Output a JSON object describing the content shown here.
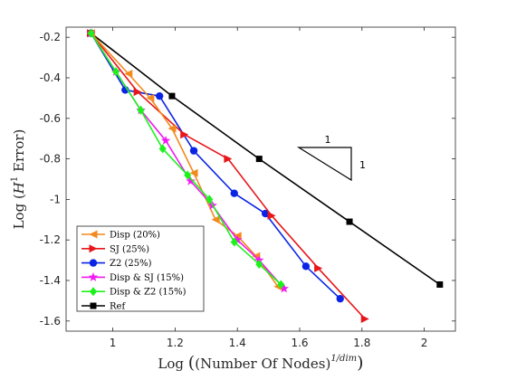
{
  "chart_data": {
    "type": "line",
    "xlabel": "Log ((Number Of Nodes)^{1/dim})",
    "ylabel": "Log (H^1 Error)",
    "xlim": [
      0.85,
      2.1
    ],
    "ylim": [
      -1.65,
      -0.15
    ],
    "xticks": [
      1,
      1.2,
      1.4,
      1.6,
      1.8,
      2
    ],
    "xtick_labels": [
      "1",
      "1.2",
      "1.4",
      "1.6",
      "1.8",
      "2"
    ],
    "yticks": [
      -0.2,
      -0.4,
      -0.6,
      -0.8,
      -1,
      -1.2,
      -1.4,
      -1.6
    ],
    "ytick_labels": [
      "-0.2",
      "-0.4",
      "-0.6",
      "-0.8",
      "-1",
      "-1.2",
      "-1.4",
      "-1.6"
    ],
    "grid": false,
    "legend_position": "bottom-left",
    "slope_triangle": {
      "horizontal_label": "1",
      "vertical_label": "1"
    },
    "series": [
      {
        "name": "Disp (20%)",
        "color": "#F28A1E",
        "marker": "triangle-left",
        "x": [
          0.93,
          1.05,
          1.12,
          1.19,
          1.26,
          1.33,
          1.4,
          1.46,
          1.53
        ],
        "y": [
          -0.18,
          -0.38,
          -0.5,
          -0.65,
          -0.87,
          -1.1,
          -1.18,
          -1.28,
          -1.43
        ]
      },
      {
        "name": "SJ (25%)",
        "color": "#E8161A",
        "marker": "triangle-right",
        "x": [
          0.93,
          1.08,
          1.23,
          1.37,
          1.51,
          1.66,
          1.81
        ],
        "y": [
          -0.18,
          -0.47,
          -0.68,
          -0.8,
          -1.08,
          -1.34,
          -1.59
        ]
      },
      {
        "name": "Z2 (25%)",
        "color": "#0A24E6",
        "marker": "circle",
        "x": [
          0.93,
          1.04,
          1.15,
          1.26,
          1.39,
          1.49,
          1.62,
          1.73
        ],
        "y": [
          -0.18,
          -0.46,
          -0.49,
          -0.76,
          -0.97,
          -1.07,
          -1.33,
          -1.49
        ]
      },
      {
        "name": "Disp & SJ (15%)",
        "color": "#F21AF2",
        "marker": "star",
        "x": [
          0.93,
          1.01,
          1.09,
          1.17,
          1.25,
          1.32,
          1.4,
          1.47,
          1.55
        ],
        "y": [
          -0.18,
          -0.37,
          -0.56,
          -0.71,
          -0.91,
          -1.03,
          -1.2,
          -1.3,
          -1.44
        ]
      },
      {
        "name": "Disp & Z2 (15%)",
        "color": "#1BF21B",
        "marker": "diamond",
        "x": [
          0.93,
          1.01,
          1.09,
          1.16,
          1.24,
          1.31,
          1.39,
          1.47,
          1.54
        ],
        "y": [
          -0.18,
          -0.37,
          -0.56,
          -0.75,
          -0.88,
          -1.0,
          -1.21,
          -1.32,
          -1.42
        ]
      },
      {
        "name": "Ref",
        "color": "#000000",
        "marker": "square",
        "x": [
          0.93,
          1.19,
          1.47,
          1.76,
          2.05
        ],
        "y": [
          -0.18,
          -0.49,
          -0.8,
          -1.11,
          -1.42
        ]
      }
    ]
  }
}
